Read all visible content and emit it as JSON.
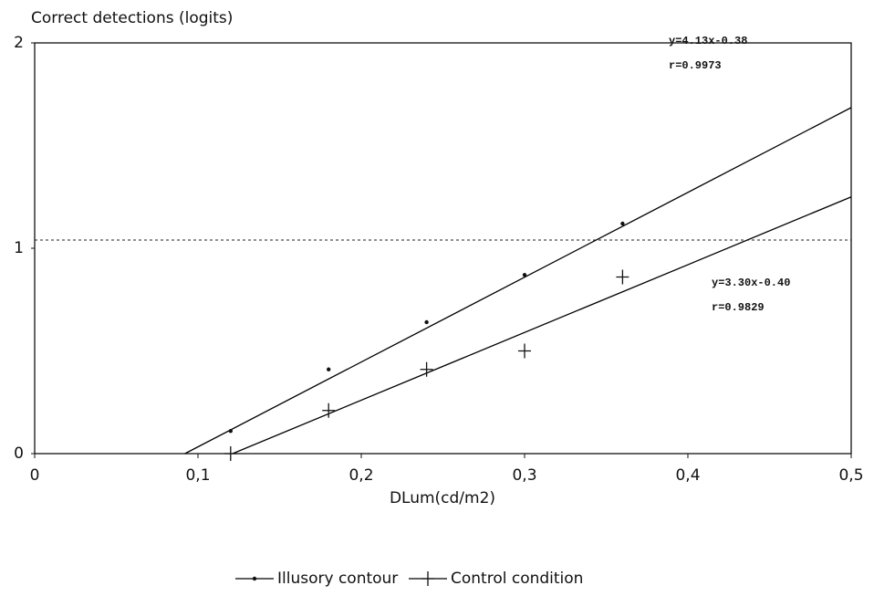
{
  "chart_data": {
    "type": "scatter",
    "y_label": "Correct detections (logits)",
    "x_label": "DLum(cd/m2)",
    "x": [
      0.12,
      0.18,
      0.24,
      0.3,
      0.36
    ],
    "series": [
      {
        "name": "Illusory contour",
        "color": "#000000",
        "marker": "dot",
        "values": [
          0.11,
          0.41,
          0.64,
          0.87,
          1.12
        ],
        "fit": {
          "slope": 4.13,
          "intercept": -0.38,
          "label": "y=4.13x-0.38",
          "r_label": "r=0.9973"
        }
      },
      {
        "name": "Control condition",
        "color": "#000000",
        "marker": "plus",
        "values": [
          0,
          0.21,
          0.41,
          0.5,
          0.86
        ],
        "fit": {
          "slope": 3.3,
          "intercept": -0.4,
          "label": "y=3.30x-0.40",
          "r_label": "r=0.9829"
        }
      }
    ],
    "reference_line": 1.04,
    "xlim": [
      0,
      0.5
    ],
    "ylim": [
      0,
      2
    ],
    "xticks": [
      0,
      {
        "value": 0.1,
        "label": "0,1"
      },
      {
        "value": 0.2,
        "label": "0,2"
      },
      {
        "value": 0.3,
        "label": "0,3"
      },
      {
        "value": 0.4,
        "label": "0,4"
      },
      {
        "value": 0.5,
        "label": "0,5"
      }
    ],
    "yticks": [
      0,
      1,
      2
    ],
    "legend": "bottom"
  }
}
